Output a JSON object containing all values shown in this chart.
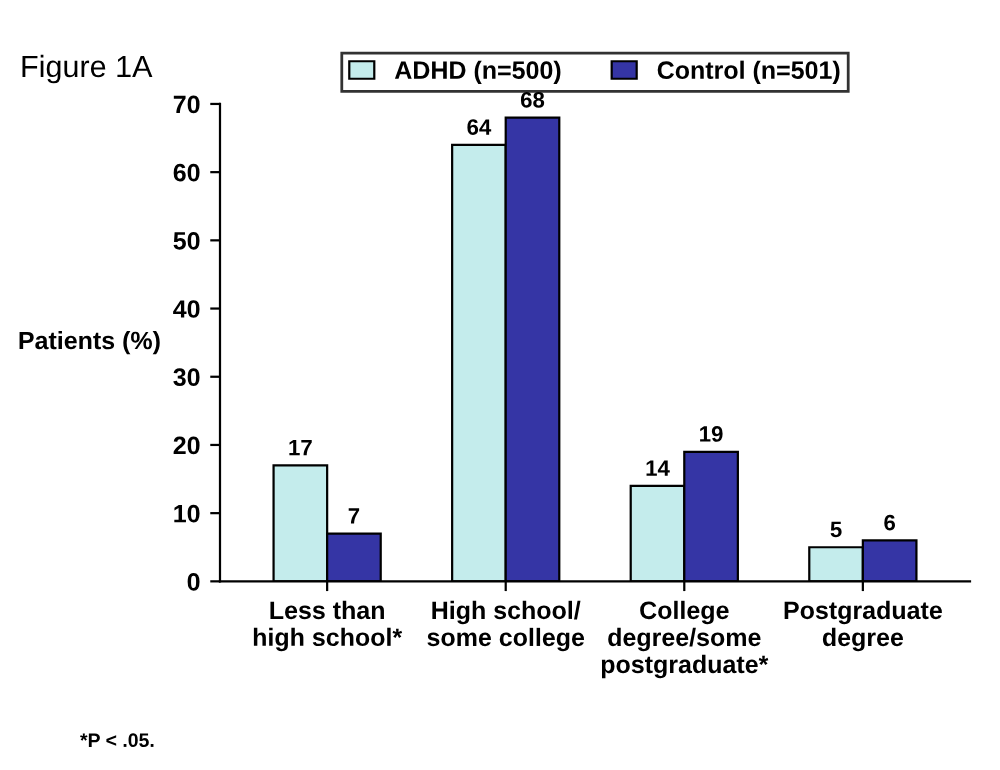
{
  "chart_data": {
    "type": "bar",
    "ylabel": "Patients (%)",
    "categories": [
      "Less than\nhigh school*",
      "High school/\nsome college",
      "College\ndegree/some\npostgraduate*",
      "Postgraduate\ndegree"
    ],
    "series": [
      {
        "name": "ADHD (n=500)",
        "color": "#c4ecec",
        "values": [
          17,
          64,
          14,
          5
        ]
      },
      {
        "name": "Control (n=501)",
        "color": "#3535a5",
        "values": [
          7,
          68,
          19,
          6
        ]
      }
    ],
    "ylim": [
      0,
      70
    ],
    "yticks": [
      0,
      10,
      20,
      30,
      40,
      50,
      60,
      70
    ],
    "data_labels": true,
    "grid": false,
    "legend": "top",
    "annotations": [
      "Figure 1A",
      "*P < .05."
    ]
  }
}
